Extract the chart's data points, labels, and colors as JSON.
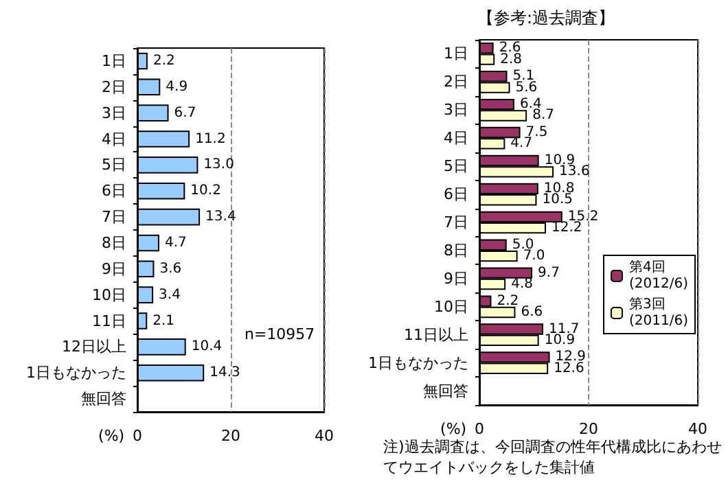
{
  "chart_data": [
    {
      "type": "bar",
      "orientation": "horizontal",
      "categories": [
        "1日",
        "2日",
        "3日",
        "4日",
        "5日",
        "6日",
        "7日",
        "8日",
        "9日",
        "10日",
        "11日",
        "12日以上",
        "1日もなかった",
        "無回答"
      ],
      "series": [
        {
          "color": "#99ccff",
          "values": [
            2.2,
            4.9,
            6.7,
            11.2,
            13.0,
            10.2,
            13.4,
            4.7,
            3.6,
            3.4,
            2.1,
            10.4,
            14.3,
            null
          ],
          "value_labels": [
            "2.2",
            "4.9",
            "6.7",
            "11.2",
            "13.0",
            "10.2",
            "13.4",
            "4.7",
            "3.6",
            "3.4",
            "2.1",
            "10.4",
            "14.3",
            null
          ]
        }
      ],
      "xlabel": "(%)",
      "xlim": [
        0,
        40
      ],
      "xticks": [
        0,
        20,
        40
      ],
      "grid": "x",
      "legend": false,
      "annotations": [
        "n=10957"
      ]
    },
    {
      "type": "bar",
      "orientation": "horizontal",
      "title": "【参考:過去調査】",
      "categories": [
        "1日",
        "2日",
        "3日",
        "4日",
        "5日",
        "6日",
        "7日",
        "8日",
        "9日",
        "10日",
        "11日以上",
        "1日もなかった",
        "無回答"
      ],
      "series": [
        {
          "name": "第4回\n(2012/6)",
          "color": "#993366",
          "values": [
            2.6,
            5.1,
            6.4,
            7.5,
            10.9,
            10.8,
            15.2,
            5.0,
            9.7,
            2.2,
            11.7,
            12.9,
            null
          ],
          "value_labels": [
            "2.6",
            "5.1",
            "6.4",
            "7.5",
            "10.9",
            "10.8",
            "15.2",
            "5.0",
            "9.7",
            "2.2",
            "11.7",
            "12.9",
            null
          ]
        },
        {
          "name": "第3回\n(2011/6)",
          "color": "#ffffcc",
          "values": [
            2.8,
            5.6,
            8.7,
            4.7,
            13.6,
            10.5,
            12.2,
            7.0,
            4.8,
            6.6,
            10.9,
            12.6,
            null
          ],
          "value_labels": [
            "2.8",
            "5.6",
            "8.7",
            "4.7",
            "13.6",
            "10.5",
            "12.2",
            "7.0",
            "4.8",
            "6.6",
            "10.9",
            "12.6",
            null
          ]
        }
      ],
      "xlabel": "(%)",
      "xlim": [
        0,
        40
      ],
      "xticks": [
        0,
        20,
        40
      ],
      "grid": "x",
      "legend": "right",
      "annotations": [
        "注)過去調査は、今回調査の性年代構成比にあわせてウエイトバックをした集計値"
      ]
    }
  ]
}
